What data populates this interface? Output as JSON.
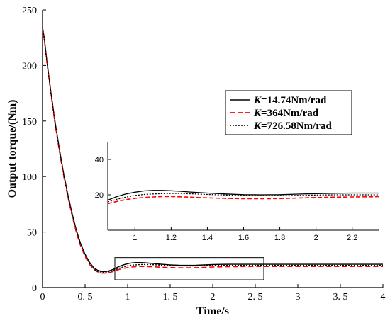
{
  "chart_data": {
    "type": "line",
    "xlabel": "Time/s",
    "ylabel": "Output torque/(Nm)",
    "xlim": [
      0,
      4
    ],
    "ylim": [
      0,
      250
    ],
    "x_ticks": [
      0,
      0.5,
      1,
      1.5,
      2,
      2.5,
      3,
      3.5,
      4
    ],
    "x_tick_labels": [
      "0",
      "0. 5",
      "1",
      "1. 5",
      "2",
      "2. 5",
      "3",
      "3. 5",
      "4"
    ],
    "y_ticks": [
      0,
      50,
      100,
      150,
      200,
      250
    ],
    "y_tick_labels": [
      "0",
      "50",
      "100",
      "150",
      "200",
      "250"
    ],
    "grid": false,
    "legend": {
      "placement": "right",
      "entries": [
        {
          "prefix": "K",
          "suffix": "=14.74Nm/rad"
        },
        {
          "prefix": "K",
          "suffix": "=364Nm/rad"
        },
        {
          "prefix": "K",
          "suffix": "=726.58Nm/rad"
        }
      ]
    },
    "series": [
      {
        "name": "K=14.74Nm/rad",
        "color": "#000000",
        "dash": "solid",
        "x": [
          0,
          0.02,
          0.05,
          0.1,
          0.15,
          0.2,
          0.25,
          0.3,
          0.35,
          0.4,
          0.45,
          0.5,
          0.55,
          0.6,
          0.65,
          0.7,
          0.75,
          0.8,
          0.85,
          0.9,
          0.95,
          1.0,
          1.05,
          1.1,
          1.15,
          1.2,
          1.25,
          1.3,
          1.4,
          1.5,
          1.6,
          1.7,
          1.8,
          1.9,
          2.0,
          2.1,
          2.2,
          2.3,
          2.5,
          2.8,
          3.0,
          3.2,
          3.5,
          3.8,
          4.0
        ],
        "y": [
          234,
          225,
          205,
          175,
          148,
          124,
          102,
          83,
          66,
          51,
          39,
          30,
          23,
          18,
          15.5,
          14.5,
          14.5,
          15.5,
          17,
          19,
          20.5,
          21.5,
          22.2,
          22.5,
          22.5,
          22.3,
          22,
          21.6,
          21,
          20.5,
          20.1,
          20,
          20.1,
          20.4,
          20.7,
          20.9,
          21,
          21,
          21,
          21,
          21,
          21,
          21,
          21,
          21
        ]
      },
      {
        "name": "K=364Nm/rad",
        "color": "#ff0000",
        "dash": "dashed",
        "x": [
          0,
          0.02,
          0.05,
          0.1,
          0.15,
          0.2,
          0.25,
          0.3,
          0.35,
          0.4,
          0.45,
          0.5,
          0.55,
          0.6,
          0.65,
          0.7,
          0.75,
          0.8,
          0.85,
          0.9,
          0.95,
          1.0,
          1.05,
          1.1,
          1.15,
          1.2,
          1.25,
          1.3,
          1.4,
          1.5,
          1.6,
          1.7,
          1.8,
          1.9,
          2.0,
          2.1,
          2.2,
          2.3,
          2.5,
          2.8,
          3.0,
          3.2,
          3.5,
          3.8,
          4.0
        ],
        "y": [
          234,
          224,
          204,
          174,
          146,
          122,
          100,
          81,
          64,
          49,
          37,
          28,
          21,
          16.5,
          14,
          13,
          13,
          13.8,
          15,
          16.3,
          17.3,
          18,
          18.5,
          18.8,
          19,
          19,
          18.9,
          18.7,
          18.3,
          18,
          17.8,
          17.8,
          17.9,
          18.2,
          18.5,
          18.7,
          18.8,
          18.9,
          19,
          19,
          19,
          19,
          19,
          19,
          19
        ]
      },
      {
        "name": "K=726.58Nm/rad",
        "color": "#000000",
        "dash": "dotted",
        "x": [
          0,
          0.02,
          0.05,
          0.1,
          0.15,
          0.2,
          0.25,
          0.3,
          0.35,
          0.4,
          0.45,
          0.5,
          0.55,
          0.6,
          0.65,
          0.7,
          0.75,
          0.8,
          0.85,
          0.9,
          0.95,
          1.0,
          1.05,
          1.1,
          1.15,
          1.2,
          1.25,
          1.3,
          1.4,
          1.5,
          1.6,
          1.7,
          1.8,
          1.9,
          2.0,
          2.1,
          2.2,
          2.3,
          2.5,
          2.8,
          3.0,
          3.2,
          3.5,
          3.8,
          4.0
        ],
        "y": [
          234,
          224,
          204,
          174,
          147,
          123,
          101,
          82,
          65,
          50,
          38,
          29,
          22,
          17,
          14.5,
          13.8,
          13.8,
          14.6,
          16,
          17.5,
          18.7,
          19.6,
          20.2,
          20.5,
          20.7,
          20.8,
          20.8,
          20.6,
          20.2,
          19.9,
          19.6,
          19.5,
          19.5,
          19.7,
          19.9,
          20,
          20,
          20,
          20,
          20,
          20,
          20,
          20,
          20,
          20
        ]
      }
    ],
    "zoom_box": {
      "x_range": [
        0.85,
        2.6
      ],
      "y_range": [
        7,
        27
      ]
    },
    "inset": {
      "xlim": [
        0.85,
        2.35
      ],
      "ylim": [
        0,
        50
      ],
      "x_ticks": [
        1,
        1.2,
        1.4,
        1.6,
        1.8,
        2,
        2.2
      ],
      "x_tick_labels": [
        "1",
        "1.2",
        "1.4",
        "1.6",
        "1.8",
        "2",
        "2.2"
      ],
      "y_ticks": [
        20,
        40
      ],
      "y_tick_labels": [
        "20",
        "40"
      ]
    }
  }
}
